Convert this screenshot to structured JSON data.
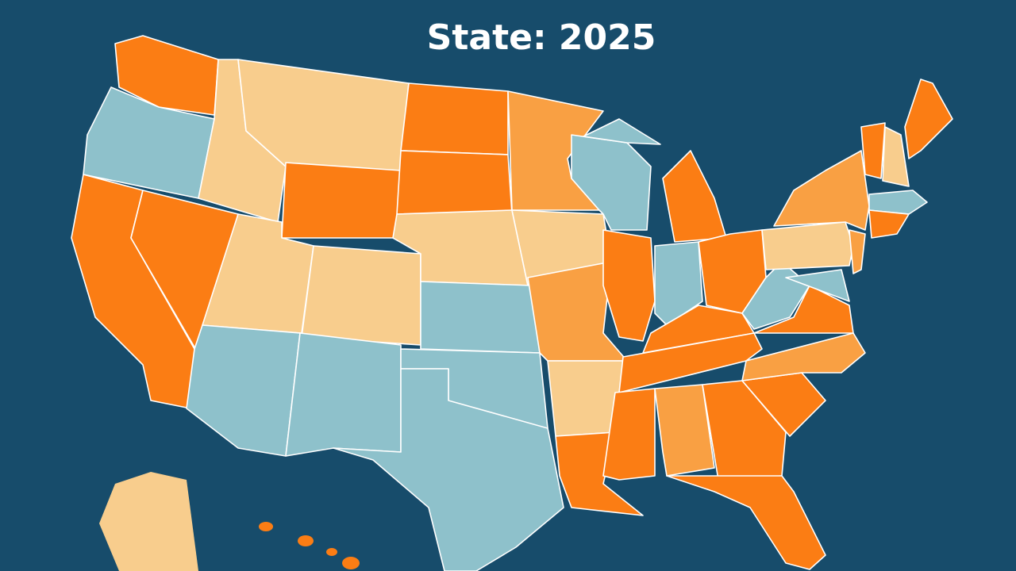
{
  "map": {
    "title": "State: 2025"
  }
}
